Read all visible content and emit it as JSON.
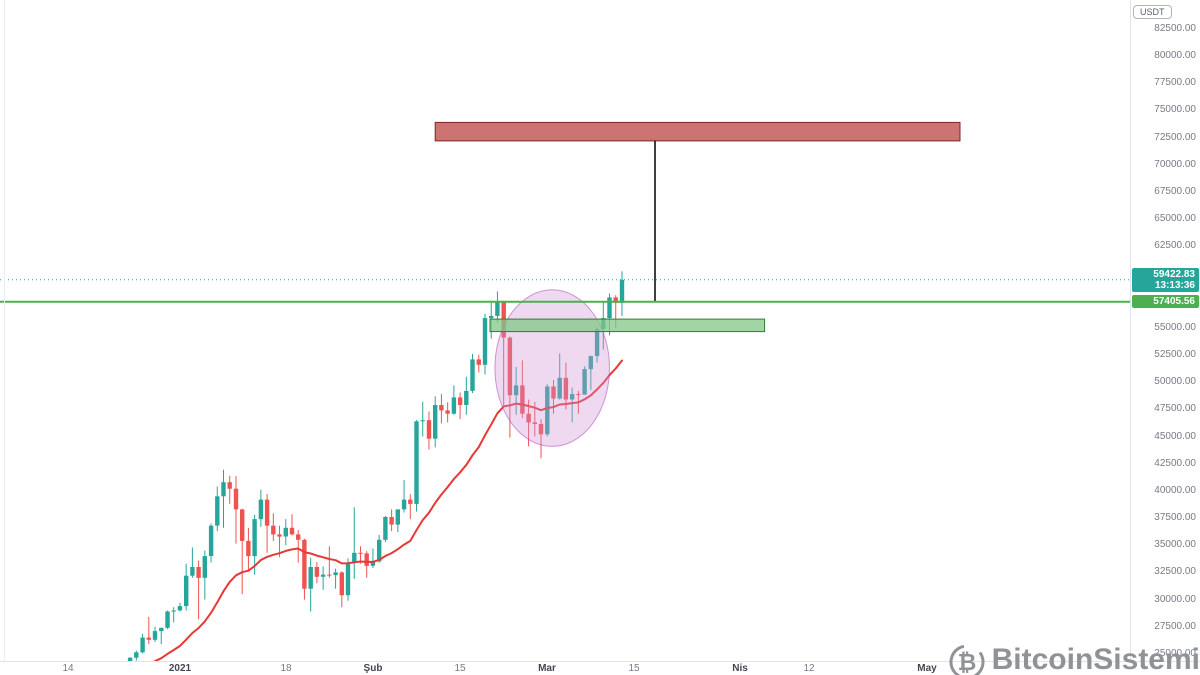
{
  "price_scale": {
    "unit_badge": "USDT"
  },
  "current_price_badge": {
    "price": "59422.83",
    "countdown": "13:13:36",
    "bg": "#26a69a"
  },
  "alert_price_badge": {
    "price": "57405.56",
    "bg": "#4caf50"
  },
  "watermark": {
    "text": "BitcoinSistemi",
    "icon": "bitcoin-logo",
    "icon_glyph": "₿",
    "color": "#8f9296"
  },
  "chart_data": {
    "type": "candlestick",
    "quote_currency": "USDT",
    "timeframe": "1D",
    "title": "",
    "ylim": [
      24350,
      85160
    ],
    "xlim_days": [
      -10.9,
      170.6
    ],
    "x_unit": "days since day-0 tick labeled 14 (mid-December), daily candles",
    "grid": false,
    "time_ticks": [
      {
        "day": 0,
        "label": "14",
        "major": false
      },
      {
        "day": 18,
        "label": "2021",
        "major": true
      },
      {
        "day": 35,
        "label": "18",
        "major": false
      },
      {
        "day": 49,
        "label": "Şub",
        "major": true
      },
      {
        "day": 63,
        "label": "15",
        "major": false
      },
      {
        "day": 77,
        "label": "Mar",
        "major": true
      },
      {
        "day": 91,
        "label": "15",
        "major": false
      },
      {
        "day": 108,
        "label": "Nis",
        "major": true
      },
      {
        "day": 119,
        "label": "12",
        "major": false
      },
      {
        "day": 138,
        "label": "May",
        "major": true
      }
    ],
    "price_ticks": {
      "from": 25000,
      "to": 82500,
      "step": 2500,
      "format": "0.00"
    },
    "candles": {
      "columns": [
        "day",
        "open",
        "high",
        "low",
        "close"
      ],
      "rows": [
        [
          4,
          23100,
          23350,
          22700,
          23000
        ],
        [
          5,
          23000,
          24200,
          22800,
          24050
        ],
        [
          6,
          24050,
          24300,
          23700,
          23900
        ],
        [
          7,
          23900,
          24100,
          23450,
          23600
        ],
        [
          8,
          23600,
          23800,
          23100,
          23450
        ],
        [
          9,
          23450,
          23950,
          23200,
          23800
        ],
        [
          10,
          23800,
          24700,
          23450,
          24650
        ],
        [
          11,
          24650,
          25300,
          24400,
          25150
        ],
        [
          12,
          25150,
          26850,
          25050,
          26500
        ],
        [
          13,
          26500,
          28400,
          25900,
          26300
        ],
        [
          14,
          26300,
          27500,
          26100,
          27100
        ],
        [
          15,
          27100,
          27400,
          25900,
          27400
        ],
        [
          16,
          27400,
          29000,
          27300,
          28900
        ],
        [
          17,
          28900,
          29300,
          27900,
          29000
        ],
        [
          18,
          29000,
          29700,
          28900,
          29400
        ],
        [
          19,
          29400,
          33300,
          29000,
          32200
        ],
        [
          20,
          32200,
          34800,
          32000,
          33000
        ],
        [
          21,
          33000,
          33600,
          28200,
          32000
        ],
        [
          22,
          32000,
          34500,
          30000,
          34000
        ],
        [
          23,
          34000,
          37000,
          33400,
          36800
        ],
        [
          24,
          36800,
          40400,
          36300,
          39500
        ],
        [
          25,
          39500,
          41950,
          36600,
          40800
        ],
        [
          26,
          40800,
          41400,
          38800,
          40200
        ],
        [
          27,
          40200,
          41350,
          35150,
          38300
        ],
        [
          28,
          38300,
          38350,
          30500,
          35400
        ],
        [
          29,
          35400,
          36600,
          32600,
          34000
        ],
        [
          30,
          34000,
          37800,
          32300,
          37400
        ],
        [
          31,
          37400,
          40100,
          36700,
          39200
        ],
        [
          32,
          39200,
          39700,
          34300,
          36800
        ],
        [
          33,
          36800,
          37950,
          35400,
          36000
        ],
        [
          34,
          36000,
          36800,
          33900,
          35800
        ],
        [
          35,
          35800,
          37400,
          35000,
          36600
        ],
        [
          36,
          36600,
          37850,
          35900,
          36000
        ],
        [
          37,
          36000,
          36400,
          33400,
          35500
        ],
        [
          38,
          35500,
          35600,
          30000,
          31000
        ],
        [
          39,
          31000,
          33850,
          28900,
          33000
        ],
        [
          40,
          33000,
          33450,
          31500,
          32100
        ],
        [
          41,
          32100,
          33050,
          30900,
          32300
        ],
        [
          42,
          32300,
          34900,
          32000,
          32250
        ],
        [
          43,
          32250,
          32850,
          31000,
          32500
        ],
        [
          44,
          32500,
          32600,
          29300,
          30400
        ],
        [
          45,
          30400,
          33800,
          29900,
          33400
        ],
        [
          46,
          33400,
          38500,
          31900,
          34300
        ],
        [
          47,
          34300,
          34900,
          33300,
          34250
        ],
        [
          48,
          34250,
          34450,
          32000,
          33100
        ],
        [
          49,
          33100,
          34700,
          32900,
          33500
        ],
        [
          50,
          33500,
          35950,
          33400,
          35500
        ],
        [
          51,
          35500,
          37700,
          35300,
          37600
        ],
        [
          52,
          37600,
          38300,
          36300,
          36900
        ],
        [
          53,
          36900,
          38300,
          36200,
          38300
        ],
        [
          54,
          38300,
          41000,
          38000,
          39200
        ],
        [
          55,
          39200,
          39700,
          37400,
          38800
        ],
        [
          56,
          38800,
          46500,
          38100,
          46400
        ],
        [
          57,
          46400,
          48200,
          45000,
          46500
        ],
        [
          58,
          46500,
          47300,
          43800,
          44800
        ],
        [
          59,
          44800,
          48700,
          44000,
          47900
        ],
        [
          60,
          47900,
          48900,
          46200,
          47400
        ],
        [
          61,
          47400,
          48150,
          46300,
          47100
        ],
        [
          62,
          47100,
          49700,
          47000,
          48600
        ],
        [
          63,
          48600,
          49050,
          46600,
          47900
        ],
        [
          64,
          47900,
          50500,
          47000,
          49200
        ],
        [
          65,
          49200,
          52600,
          49000,
          52100
        ],
        [
          66,
          52100,
          52530,
          50900,
          51600
        ],
        [
          67,
          51600,
          56300,
          50700,
          55900
        ],
        [
          68,
          55900,
          57500,
          54000,
          56100
        ],
        [
          69,
          56100,
          58350,
          55500,
          57450
        ],
        [
          70,
          57450,
          57500,
          47700,
          54100
        ],
        [
          71,
          54100,
          54200,
          44900,
          48800
        ],
        [
          72,
          48800,
          51400,
          47000,
          49700
        ],
        [
          73,
          49700,
          52000,
          46700,
          47100
        ],
        [
          74,
          47100,
          48400,
          44100,
          46300
        ],
        [
          75,
          46300,
          48200,
          45000,
          46150
        ],
        [
          76,
          46150,
          46600,
          43000,
          45200
        ],
        [
          77,
          45200,
          49800,
          45000,
          49600
        ],
        [
          78,
          49600,
          50200,
          47100,
          48500
        ],
        [
          79,
          48500,
          52650,
          48400,
          50400
        ],
        [
          80,
          50400,
          51800,
          47500,
          48400
        ],
        [
          81,
          48400,
          49500,
          46300,
          48900
        ],
        [
          82,
          48900,
          49200,
          47100,
          48850
        ],
        [
          83,
          48850,
          51450,
          48850,
          51200
        ],
        [
          84,
          51200,
          52450,
          49300,
          52400
        ],
        [
          85,
          52400,
          55000,
          51800,
          54900
        ],
        [
          86,
          54900,
          57400,
          53000,
          55900
        ],
        [
          87,
          55900,
          58150,
          54300,
          57800
        ],
        [
          88,
          57800,
          58000,
          55000,
          57300
        ],
        [
          89,
          57300,
          60200,
          56100,
          59422.83
        ]
      ]
    },
    "ma_line": {
      "kind": "EMA",
      "period": 21,
      "color": "#e53935",
      "width": 2
    },
    "annotations": {
      "resistance_box": {
        "day_from": 59,
        "day_to": 143.3,
        "price_from": 72200,
        "price_to": 73900,
        "fill": "#c0504d",
        "fill_opacity": 0.8,
        "stroke": "#7c2626"
      },
      "support_box": {
        "day_from": 67.8,
        "day_to": 111.9,
        "price_from": 54650,
        "price_to": 55800,
        "fill": "#81c784",
        "fill_opacity": 0.75,
        "stroke": "#2e7d32"
      },
      "measure_vline": {
        "day": 94.3,
        "price_from": 57405.56,
        "price_to": 72200,
        "color": "#000000",
        "width": 1.5
      },
      "cup_ellipse": {
        "day_center": 77.8,
        "price_center": 51300,
        "day_radius": 9.2,
        "price_radius": 7200,
        "fill": "#ce93d8",
        "fill_opacity": 0.35,
        "stroke": "#ab47bc",
        "stroke_opacity": 0.55
      },
      "alert_hline": {
        "price": 57405.56,
        "color": "#4caf50",
        "width": 2
      },
      "current_price_line": {
        "price": 59422.83,
        "color": "#26a69a",
        "style": "dotted",
        "width": 1
      }
    },
    "colors": {
      "up": "#26a69a",
      "down": "#ef5350",
      "background": "#ffffff",
      "axis_text": "#787b86",
      "axis_major_text": "#434651",
      "axis_border": "#e0e3eb"
    }
  }
}
